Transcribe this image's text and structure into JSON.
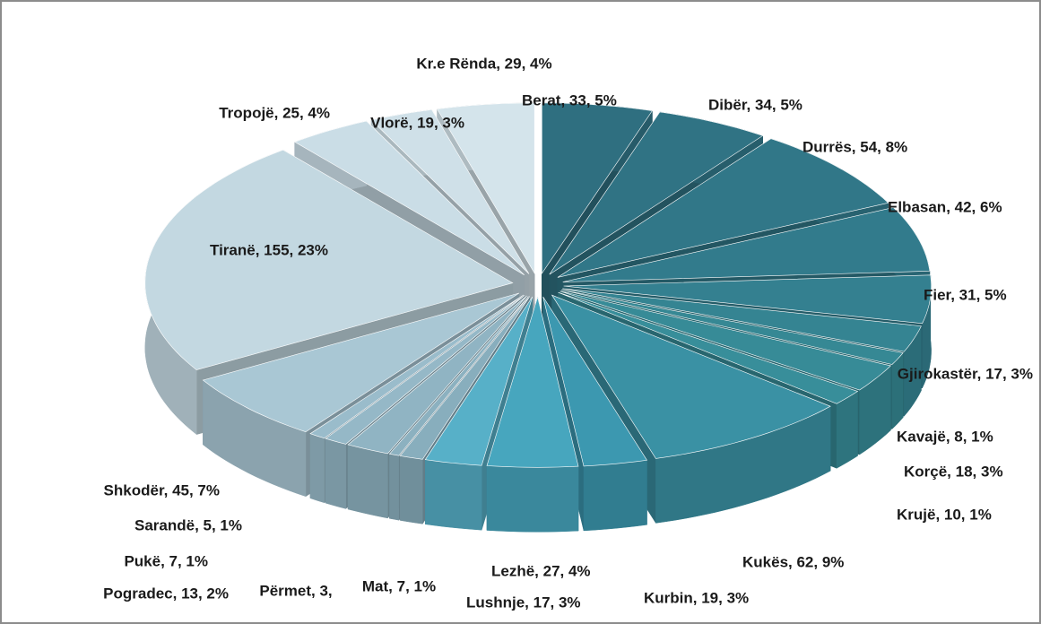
{
  "chart_data": {
    "type": "pie3d",
    "values": [
      33,
      34,
      54,
      42,
      31,
      17,
      8,
      18,
      10,
      62,
      19,
      27,
      17,
      7,
      3,
      13,
      7,
      5,
      45,
      155,
      25,
      19,
      29
    ],
    "value_labels": [
      "Berat, 33, 5%",
      "Dibër, 34, 5%",
      "Durrës, 54, 8%",
      "Elbasan, 42, 6%",
      "Fier, 31, 5%",
      "Gjirokastër, 17, 3%",
      "Kavajë, 8, 1%",
      "Korçë, 18, 3%",
      "Krujë, 10, 1%",
      "Kukës, 62, 9%",
      "Kurbin, 19, 3%",
      "Lezhë, 27, 4%",
      "Lushnje, 17, 3%",
      "Mat, 7, 1%",
      "Përmet, 3,",
      "Pogradec, 13, 2%",
      "Pukë, 7, 1%",
      "Sarandë, 5, 1%",
      "Shkodër, 45, 7%",
      "Tiranë, 155, 23%",
      "Tropojë, 25, 4%",
      "Vlorë, 19, 3%",
      "Kr.e Rënda, 29, 4%"
    ],
    "colors": [
      "#2f6f80",
      "#307384",
      "#317788",
      "#327b8c",
      "#348090",
      "#358492",
      "#368894",
      "#378b97",
      "#388e9a",
      "#3a91a4",
      "#3c98b0",
      "#47a6be",
      "#57b0c8",
      "#88aebd",
      "#8cb1c0",
      "#90b4c3",
      "#95b8c7",
      "#9abccb",
      "#a9c7d4",
      "#c3d8e1",
      "#cadde6",
      "#cfe0e8",
      "#d4e4eb"
    ]
  }
}
